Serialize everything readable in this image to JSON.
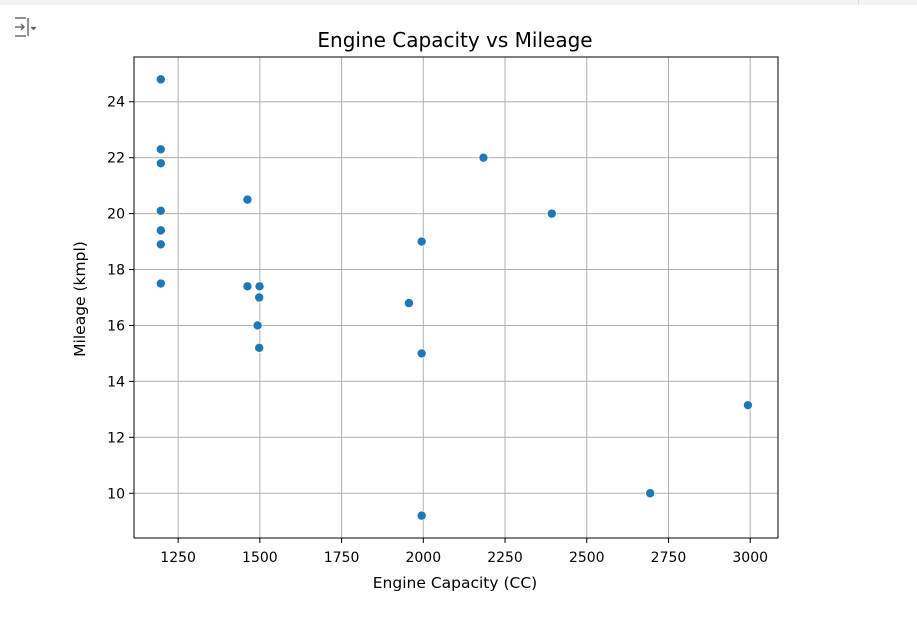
{
  "toolbar": {
    "output_toggle_icon": "output-collapse-icon"
  },
  "chart_data": {
    "type": "scatter",
    "title": "Engine Capacity vs Mileage",
    "xlabel": "Engine Capacity (CC)",
    "ylabel": "Mileage (kmpl)",
    "xlim": [
      1115,
      3085
    ],
    "ylim": [
      8.4,
      25.6
    ],
    "xticks": [
      1250,
      1500,
      1750,
      2000,
      2250,
      2500,
      2750,
      3000
    ],
    "yticks": [
      10,
      12,
      14,
      16,
      18,
      20,
      22,
      24
    ],
    "grid": true,
    "marker_color": "#1f77b4",
    "points": [
      {
        "x": 1197,
        "y": 24.8
      },
      {
        "x": 1197,
        "y": 22.3
      },
      {
        "x": 1197,
        "y": 21.8
      },
      {
        "x": 1197,
        "y": 20.1
      },
      {
        "x": 1197,
        "y": 19.4
      },
      {
        "x": 1197,
        "y": 18.9
      },
      {
        "x": 1197,
        "y": 17.5
      },
      {
        "x": 1462,
        "y": 20.5
      },
      {
        "x": 1462,
        "y": 17.4
      },
      {
        "x": 1499,
        "y": 17.4
      },
      {
        "x": 1498,
        "y": 17.0
      },
      {
        "x": 1493,
        "y": 16.0
      },
      {
        "x": 1498,
        "y": 15.2
      },
      {
        "x": 1956,
        "y": 16.8
      },
      {
        "x": 1995,
        "y": 19.0
      },
      {
        "x": 1995,
        "y": 15.0
      },
      {
        "x": 1995,
        "y": 9.2
      },
      {
        "x": 2184,
        "y": 22.0
      },
      {
        "x": 2393,
        "y": 20.0
      },
      {
        "x": 2694,
        "y": 10.0
      },
      {
        "x": 2993,
        "y": 13.15
      }
    ]
  }
}
